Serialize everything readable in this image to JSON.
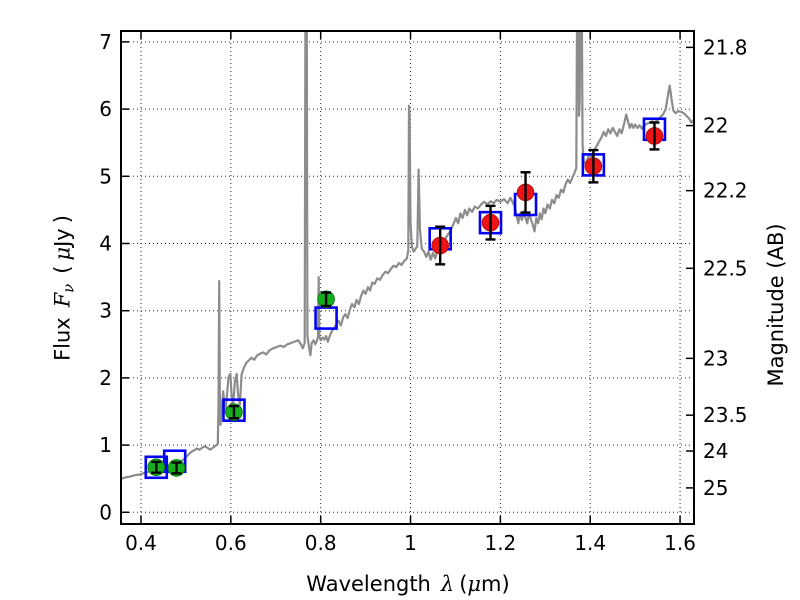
{
  "labels": {
    "x_name": "Wavelength",
    "x_symbol": "λ",
    "x_unit_open": "(",
    "x_mu": "μ",
    "x_unit_close": "m)",
    "y_name": "Flux",
    "y_symbol": "F",
    "y_symbol_sub": "ν",
    "y_unit_open": "(",
    "y_mu": "μ",
    "y_unit": "Jy",
    "y_unit_close": ")",
    "y2_name": "Magnitude (AB)"
  },
  "chart_data": {
    "type": "line",
    "title": "",
    "xlabel": "Wavelength λ (μm)",
    "ylabel_left": "Flux Fν ( μJy )",
    "ylabel_right": "Magnitude (AB)",
    "xlim": [
      0.3555,
      1.631
    ],
    "ylim_flux": [
      -0.174,
      7.162
    ],
    "grid": "dotted",
    "legend": "none",
    "mag_flux_relation": "m_AB = 23.9 - 2.5*log10(F_uJy)",
    "x_ticks": [
      0.4,
      0.6,
      0.8,
      1.0,
      1.2,
      1.4,
      1.6
    ],
    "x_tick_labels": [
      "0.4",
      "0.6",
      "0.8",
      "1",
      "1.2",
      "1.4",
      "1.6"
    ],
    "y_ticks_flux": [
      0,
      1,
      2,
      3,
      4,
      5,
      6,
      7
    ],
    "y_tick_labels_flux": [
      "0",
      "1",
      "2",
      "3",
      "4",
      "5",
      "6",
      "7"
    ],
    "y_ticks_mag": [
      21.8,
      22,
      22.2,
      22.5,
      23,
      23.5,
      24,
      25
    ],
    "y_tick_labels_mag": [
      "21.8",
      "22",
      "22.2",
      "22.5",
      "23",
      "23.5",
      "24",
      "25"
    ],
    "colors": {
      "spectrum": "#8c8c8c",
      "observed_optical": "#14ae1e",
      "observed_optical_edge": "#0b7d14",
      "observed_nir": "#ee1315",
      "observed_nir_edge": "#b50d0f",
      "model_square": "#0202f2",
      "error_bar": "#000000",
      "grid": "#000000"
    },
    "photometry": {
      "observed_optical": {
        "marker": "filled-circle",
        "points": [
          {
            "wavelength_um": 0.434,
            "flux_ujy": 0.67,
            "err": 0.08
          },
          {
            "wavelength_um": 0.479,
            "flux_ujy": 0.66,
            "err": 0.08
          },
          {
            "wavelength_um": 0.607,
            "flux_ujy": 1.49,
            "err": 0.09
          },
          {
            "wavelength_um": 0.812,
            "flux_ujy": 3.17,
            "err": 0.1
          }
        ]
      },
      "observed_nir": {
        "marker": "filled-circle",
        "points": [
          {
            "wavelength_um": 1.066,
            "flux_ujy": 3.97,
            "err": 0.28
          },
          {
            "wavelength_um": 1.178,
            "flux_ujy": 4.31,
            "err": 0.25
          },
          {
            "wavelength_um": 1.256,
            "flux_ujy": 4.76,
            "err": 0.3
          },
          {
            "wavelength_um": 1.407,
            "flux_ujy": 5.15,
            "err": 0.24
          },
          {
            "wavelength_um": 1.543,
            "flux_ujy": 5.6,
            "err": 0.2
          }
        ]
      },
      "model": {
        "marker": "open-square",
        "points": [
          [
            0.434,
            0.67
          ],
          [
            0.475,
            0.76
          ],
          [
            0.607,
            1.52
          ],
          [
            0.812,
            2.89
          ],
          [
            1.066,
            4.07
          ],
          [
            1.178,
            4.31
          ],
          [
            1.256,
            4.58
          ],
          [
            1.407,
            5.17
          ],
          [
            1.543,
            5.7
          ]
        ]
      }
    },
    "spectrum": [
      [
        0.356,
        0.5
      ],
      [
        0.365,
        0.52
      ],
      [
        0.375,
        0.53
      ],
      [
        0.385,
        0.55
      ],
      [
        0.395,
        0.56
      ],
      [
        0.405,
        0.58
      ],
      [
        0.415,
        0.6
      ],
      [
        0.425,
        0.62
      ],
      [
        0.432,
        0.64
      ],
      [
        0.44,
        0.63
      ],
      [
        0.448,
        0.66
      ],
      [
        0.455,
        0.68
      ],
      [
        0.462,
        0.67
      ],
      [
        0.47,
        0.7
      ],
      [
        0.478,
        0.72
      ],
      [
        0.486,
        0.75
      ],
      [
        0.494,
        0.78
      ],
      [
        0.5,
        0.82
      ],
      [
        0.506,
        0.86
      ],
      [
        0.512,
        0.9
      ],
      [
        0.518,
        0.92
      ],
      [
        0.524,
        0.95
      ],
      [
        0.53,
        0.93
      ],
      [
        0.536,
        0.96
      ],
      [
        0.542,
        0.98
      ],
      [
        0.548,
        0.96
      ],
      [
        0.554,
        0.93
      ],
      [
        0.56,
        0.96
      ],
      [
        0.566,
        0.99
      ],
      [
        0.571,
        1.02
      ],
      [
        0.5725,
        1.6
      ],
      [
        0.574,
        3.44
      ],
      [
        0.5755,
        1.8
      ],
      [
        0.577,
        1.3
      ],
      [
        0.58,
        1.56
      ],
      [
        0.583,
        1.8
      ],
      [
        0.5855,
        1.62
      ],
      [
        0.588,
        1.48
      ],
      [
        0.591,
        1.72
      ],
      [
        0.595,
        2.02
      ],
      [
        0.599,
        2.06
      ],
      [
        0.602,
        1.72
      ],
      [
        0.605,
        1.58
      ],
      [
        0.609,
        1.95
      ],
      [
        0.613,
        2.06
      ],
      [
        0.616,
        1.76
      ],
      [
        0.62,
        1.6
      ],
      [
        0.624,
        2.05
      ],
      [
        0.629,
        2.15
      ],
      [
        0.634,
        2.22
      ],
      [
        0.64,
        2.26
      ],
      [
        0.646,
        2.3
      ],
      [
        0.652,
        2.27
      ],
      [
        0.658,
        2.33
      ],
      [
        0.665,
        2.36
      ],
      [
        0.672,
        2.38
      ],
      [
        0.679,
        2.35
      ],
      [
        0.686,
        2.41
      ],
      [
        0.694,
        2.44
      ],
      [
        0.702,
        2.46
      ],
      [
        0.71,
        2.48
      ],
      [
        0.718,
        2.46
      ],
      [
        0.726,
        2.5
      ],
      [
        0.734,
        2.52
      ],
      [
        0.742,
        2.54
      ],
      [
        0.75,
        2.56
      ],
      [
        0.756,
        2.5
      ],
      [
        0.76,
        2.44
      ],
      [
        0.7645,
        2.52
      ],
      [
        0.766,
        7.3
      ],
      [
        0.769,
        7.3
      ],
      [
        0.7705,
        2.62
      ],
      [
        0.774,
        2.46
      ],
      [
        0.777,
        2.34
      ],
      [
        0.78,
        2.52
      ],
      [
        0.784,
        2.56
      ],
      [
        0.788,
        2.5
      ],
      [
        0.792,
        2.56
      ],
      [
        0.794,
        2.62
      ],
      [
        0.7955,
        3.5
      ],
      [
        0.797,
        2.62
      ],
      [
        0.8,
        2.56
      ],
      [
        0.804,
        2.6
      ],
      [
        0.808,
        2.57
      ],
      [
        0.812,
        2.62
      ],
      [
        0.816,
        2.54
      ],
      [
        0.82,
        2.62
      ],
      [
        0.825,
        2.7
      ],
      [
        0.83,
        2.74
      ],
      [
        0.835,
        2.8
      ],
      [
        0.84,
        2.85
      ],
      [
        0.845,
        2.78
      ],
      [
        0.85,
        2.9
      ],
      [
        0.855,
        2.95
      ],
      [
        0.86,
        2.89
      ],
      [
        0.865,
        3.02
      ],
      [
        0.87,
        3.1
      ],
      [
        0.875,
        3.05
      ],
      [
        0.88,
        3.16
      ],
      [
        0.885,
        3.1
      ],
      [
        0.89,
        3.22
      ],
      [
        0.895,
        3.3
      ],
      [
        0.9,
        3.25
      ],
      [
        0.905,
        3.35
      ],
      [
        0.91,
        3.3
      ],
      [
        0.915,
        3.42
      ],
      [
        0.92,
        3.4
      ],
      [
        0.926,
        3.48
      ],
      [
        0.932,
        3.46
      ],
      [
        0.938,
        3.53
      ],
      [
        0.944,
        3.58
      ],
      [
        0.95,
        3.56
      ],
      [
        0.956,
        3.62
      ],
      [
        0.962,
        3.67
      ],
      [
        0.968,
        3.65
      ],
      [
        0.974,
        3.71
      ],
      [
        0.98,
        3.68
      ],
      [
        0.986,
        3.74
      ],
      [
        0.992,
        3.78
      ],
      [
        0.995,
        3.9
      ],
      [
        0.9965,
        6.05
      ],
      [
        0.998,
        5.9
      ],
      [
        1.0,
        4.3
      ],
      [
        1.003,
        3.95
      ],
      [
        1.007,
        3.88
      ],
      [
        1.011,
        3.92
      ],
      [
        1.015,
        3.96
      ],
      [
        1.018,
        5.1
      ],
      [
        1.021,
        4.2
      ],
      [
        1.025,
        3.92
      ],
      [
        1.03,
        3.88
      ],
      [
        1.035,
        3.8
      ],
      [
        1.04,
        3.88
      ],
      [
        1.045,
        3.76
      ],
      [
        1.05,
        3.86
      ],
      [
        1.055,
        3.78
      ],
      [
        1.06,
        3.9
      ],
      [
        1.066,
        3.96
      ],
      [
        1.072,
        4.02
      ],
      [
        1.08,
        4.1
      ],
      [
        1.088,
        4.18
      ],
      [
        1.095,
        4.28
      ],
      [
        1.101,
        4.38
      ],
      [
        1.106,
        4.3
      ],
      [
        1.111,
        4.45
      ],
      [
        1.116,
        4.38
      ],
      [
        1.121,
        4.5
      ],
      [
        1.126,
        4.42
      ],
      [
        1.131,
        4.52
      ],
      [
        1.137,
        4.47
      ],
      [
        1.143,
        4.55
      ],
      [
        1.15,
        4.52
      ],
      [
        1.157,
        4.58
      ],
      [
        1.164,
        4.62
      ],
      [
        1.171,
        4.58
      ],
      [
        1.178,
        4.63
      ],
      [
        1.185,
        4.6
      ],
      [
        1.192,
        4.65
      ],
      [
        1.2,
        4.62
      ],
      [
        1.208,
        4.66
      ],
      [
        1.216,
        4.6
      ],
      [
        1.222,
        4.68
      ],
      [
        1.227,
        4.62
      ],
      [
        1.232,
        4.55
      ],
      [
        1.236,
        4.42
      ],
      [
        1.24,
        4.3
      ],
      [
        1.244,
        4.45
      ],
      [
        1.248,
        4.35
      ],
      [
        1.252,
        4.48
      ],
      [
        1.256,
        4.38
      ],
      [
        1.26,
        4.3
      ],
      [
        1.264,
        4.45
      ],
      [
        1.268,
        4.36
      ],
      [
        1.272,
        4.28
      ],
      [
        1.276,
        4.18
      ],
      [
        1.28,
        4.38
      ],
      [
        1.284,
        4.3
      ],
      [
        1.288,
        4.45
      ],
      [
        1.292,
        4.36
      ],
      [
        1.296,
        4.52
      ],
      [
        1.3,
        4.45
      ],
      [
        1.305,
        4.58
      ],
      [
        1.31,
        4.52
      ],
      [
        1.315,
        4.65
      ],
      [
        1.32,
        4.6
      ],
      [
        1.325,
        4.72
      ],
      [
        1.33,
        4.68
      ],
      [
        1.335,
        4.8
      ],
      [
        1.34,
        4.76
      ],
      [
        1.345,
        4.88
      ],
      [
        1.35,
        4.95
      ],
      [
        1.355,
        4.9
      ],
      [
        1.36,
        4.98
      ],
      [
        1.365,
        5.05
      ],
      [
        1.369,
        5.12
      ],
      [
        1.3705,
        7.3
      ],
      [
        1.3735,
        7.3
      ],
      [
        1.375,
        5.9
      ],
      [
        1.3765,
        6.1
      ],
      [
        1.378,
        7.3
      ],
      [
        1.3815,
        7.3
      ],
      [
        1.383,
        5.45
      ],
      [
        1.386,
        5.22
      ],
      [
        1.39,
        5.18
      ],
      [
        1.394,
        5.26
      ],
      [
        1.398,
        5.32
      ],
      [
        1.402,
        5.28
      ],
      [
        1.406,
        5.34
      ],
      [
        1.41,
        5.4
      ],
      [
        1.415,
        5.46
      ],
      [
        1.42,
        5.52
      ],
      [
        1.425,
        5.58
      ],
      [
        1.43,
        5.66
      ],
      [
        1.435,
        5.6
      ],
      [
        1.44,
        5.7
      ],
      [
        1.445,
        5.64
      ],
      [
        1.45,
        5.72
      ],
      [
        1.455,
        5.66
      ],
      [
        1.46,
        5.6
      ],
      [
        1.465,
        5.7
      ],
      [
        1.47,
        5.64
      ],
      [
        1.476,
        5.8
      ],
      [
        1.48,
        5.92
      ],
      [
        1.484,
        5.82
      ],
      [
        1.488,
        5.72
      ],
      [
        1.492,
        5.78
      ],
      [
        1.496,
        5.72
      ],
      [
        1.5,
        5.77
      ],
      [
        1.505,
        5.72
      ],
      [
        1.51,
        5.76
      ],
      [
        1.515,
        5.71
      ],
      [
        1.52,
        5.76
      ],
      [
        1.526,
        5.78
      ],
      [
        1.532,
        5.8
      ],
      [
        1.538,
        5.82
      ],
      [
        1.544,
        5.8
      ],
      [
        1.55,
        5.84
      ],
      [
        1.556,
        5.88
      ],
      [
        1.562,
        5.92
      ],
      [
        1.568,
        6.0
      ],
      [
        1.573,
        6.2
      ],
      [
        1.577,
        6.35
      ],
      [
        1.581,
        6.15
      ],
      [
        1.585,
        5.98
      ],
      [
        1.59,
        5.94
      ],
      [
        1.596,
        5.97
      ],
      [
        1.602,
        5.96
      ],
      [
        1.608,
        5.94
      ],
      [
        1.614,
        5.9
      ],
      [
        1.62,
        5.86
      ],
      [
        1.625,
        5.8
      ],
      [
        1.629,
        5.83
      ],
      [
        1.631,
        5.8
      ]
    ]
  }
}
